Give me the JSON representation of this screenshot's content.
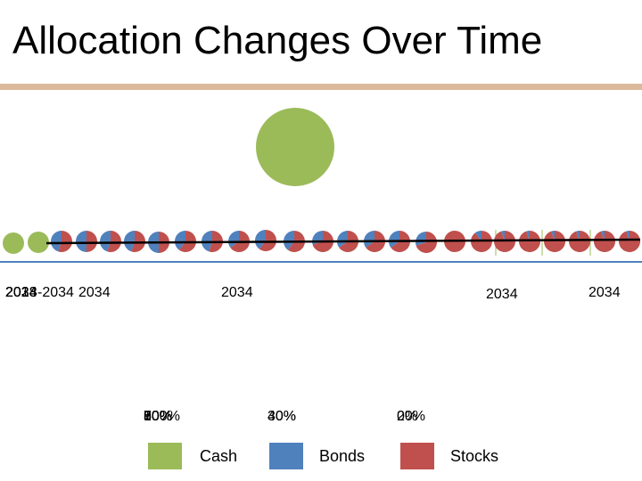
{
  "title": "Allocation Changes Over Time",
  "colors": {
    "cash": "#9bbb59",
    "bonds": "#4f81bd",
    "stocks": "#c0504d",
    "rule": "#dcb99c",
    "axis": "#4f81bd",
    "trend": "#000000"
  },
  "chart_data": {
    "type": "scatter",
    "series": [
      {
        "name": "Cash",
        "color": "#9bbb59"
      },
      {
        "name": "Bonds",
        "color": "#4f81bd"
      },
      {
        "name": "Stocks",
        "color": "#c0504d"
      }
    ],
    "points": [
      {
        "bonds": 0,
        "stocks": 0
      },
      {
        "bonds": 0,
        "stocks": 0
      },
      {
        "bonds": 0.45,
        "stocks": 0.55
      },
      {
        "bonds": 0.5,
        "stocks": 0.5
      },
      {
        "bonds": 0.45,
        "stocks": 0.55
      },
      {
        "bonds": 0.45,
        "stocks": 0.55
      },
      {
        "bonds": 0.5,
        "stocks": 0.5
      },
      {
        "bonds": 0.4,
        "stocks": 0.6
      },
      {
        "bonds": 0.45,
        "stocks": 0.55
      },
      {
        "bonds": 0.35,
        "stocks": 0.65
      },
      {
        "bonds": 0.4,
        "stocks": 0.6
      },
      {
        "bonds": 0.4,
        "stocks": 0.6
      },
      {
        "bonds": 0.3,
        "stocks": 0.7
      },
      {
        "bonds": 0.35,
        "stocks": 0.65
      },
      {
        "bonds": 0.35,
        "stocks": 0.65
      },
      {
        "bonds": 0.35,
        "stocks": 0.65
      },
      {
        "bonds": 0.3,
        "stocks": 0.7
      },
      {
        "bonds": 0,
        "stocks": 1
      },
      {
        "bonds": 0.1,
        "stocks": 0.9
      },
      {
        "bonds": 0.05,
        "stocks": 0.95
      },
      {
        "bonds": 0.05,
        "stocks": 0.95
      },
      {
        "bonds": 0.05,
        "stocks": 0.95
      },
      {
        "bonds": 0.05,
        "stocks": 0.95
      },
      {
        "bonds": 0.05,
        "stocks": 0.95
      },
      {
        "bonds": 0.05,
        "stocks": 0.95
      },
      {
        "bonds": 0,
        "stocks": 0
      }
    ],
    "date_labels": [
      {
        "lines": [
          "2034",
          "2033",
          "2028",
          "2014"
        ],
        "offsets": [
          0,
          0,
          0,
          0
        ]
      },
      {
        "lines": [
          "-2034"
        ],
        "offsets": [
          0
        ]
      },
      {
        "lines": [
          "2034"
        ],
        "offsets": [
          0
        ]
      },
      {
        "lines": [
          "2034"
        ],
        "offsets": [
          0
        ]
      },
      {
        "lines": [
          "2034"
        ],
        "offsets": [
          0
        ]
      },
      {
        "lines": [
          "2034"
        ],
        "offsets": [
          0
        ]
      }
    ],
    "percent_labels": [
      {
        "lines": [
          "50%",
          "60%",
          "70%",
          "80%",
          "90%",
          "100%"
        ]
      },
      {
        "lines": [
          "30%",
          "40%"
        ]
      },
      {
        "lines": [
          "20%",
          "0%"
        ]
      }
    ],
    "legend_placement": "bottom"
  },
  "legend": [
    {
      "label": "Cash",
      "color": "#9bbb59"
    },
    {
      "label": "Bonds",
      "color": "#4f81bd"
    },
    {
      "label": "Stocks",
      "color": "#c0504d"
    }
  ]
}
